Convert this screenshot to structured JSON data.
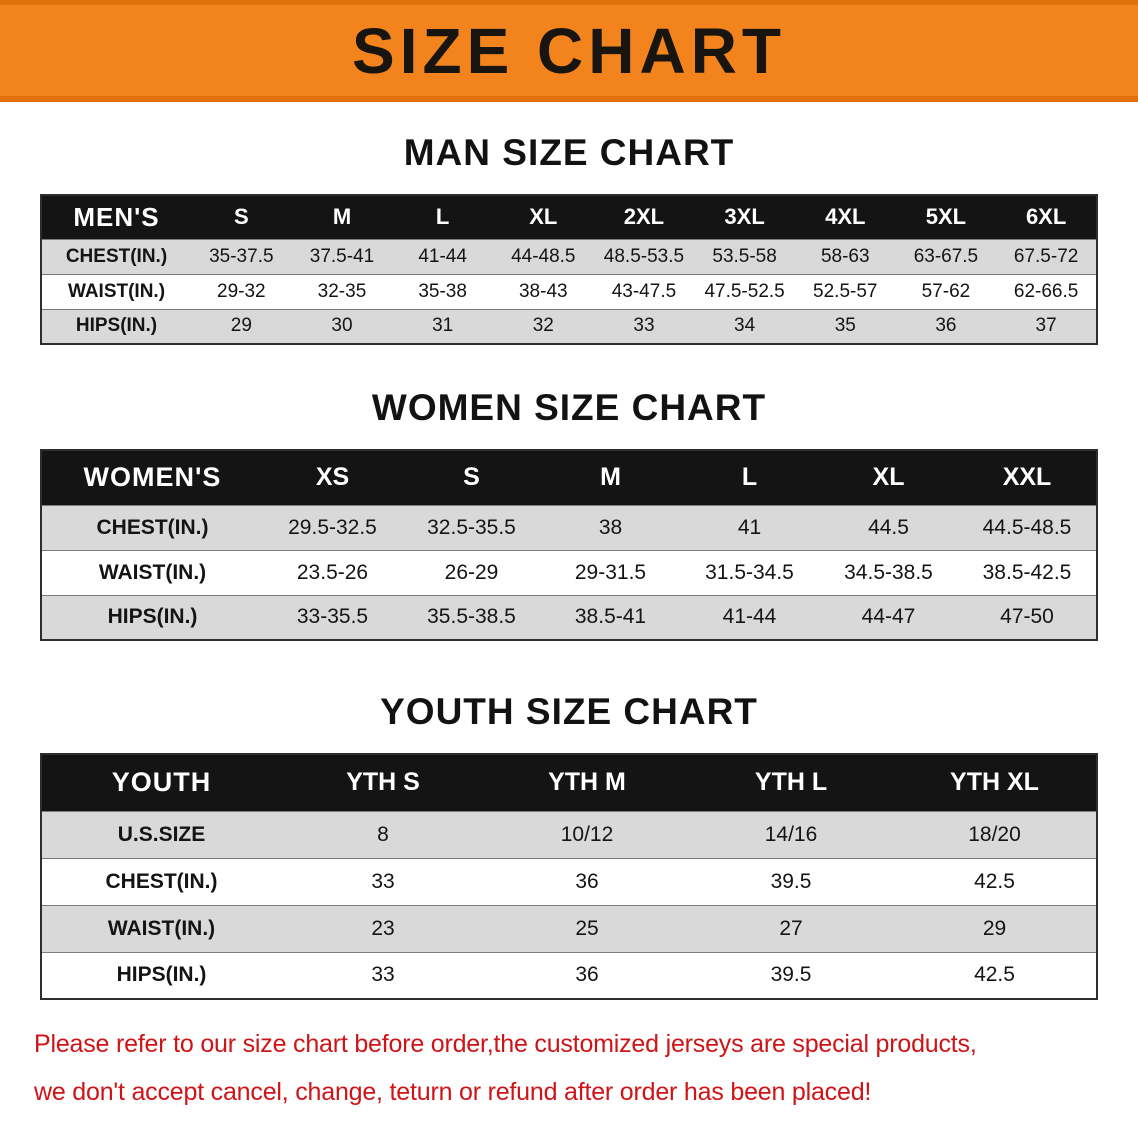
{
  "banner": {
    "title": "SIZE CHART"
  },
  "colors": {
    "banner_orange": "#f2831d",
    "table_header_black": "#141414",
    "row_shaded_gray": "#d9d9d9",
    "note_red": "#cf1316"
  },
  "sections": [
    {
      "heading": "MAN SIZE CHART",
      "table": {
        "header_label": "MEN'S",
        "columns": [
          "S",
          "M",
          "L",
          "XL",
          "2XL",
          "3XL",
          "4XL",
          "5XL",
          "6XL"
        ],
        "rows": [
          {
            "label": "CHEST(IN.)",
            "values": [
              "35-37.5",
              "37.5-41",
              "41-44",
              "44-48.5",
              "48.5-53.5",
              "53.5-58",
              "58-63",
              "63-67.5",
              "67.5-72"
            ]
          },
          {
            "label": "WAIST(IN.)",
            "values": [
              "29-32",
              "32-35",
              "35-38",
              "38-43",
              "43-47.5",
              "47.5-52.5",
              "52.5-57",
              "57-62",
              "62-66.5"
            ]
          },
          {
            "label": "HIPS(IN.)",
            "values": [
              "29",
              "30",
              "31",
              "32",
              "33",
              "34",
              "35",
              "36",
              "37"
            ]
          }
        ]
      }
    },
    {
      "heading": "WOMEN SIZE CHART",
      "table": {
        "header_label": "WOMEN'S",
        "columns": [
          "XS",
          "S",
          "M",
          "L",
          "XL",
          "XXL"
        ],
        "rows": [
          {
            "label": "CHEST(IN.)",
            "values": [
              "29.5-32.5",
              "32.5-35.5",
              "38",
              "41",
              "44.5",
              "44.5-48.5"
            ]
          },
          {
            "label": "WAIST(IN.)",
            "values": [
              "23.5-26",
              "26-29",
              "29-31.5",
              "31.5-34.5",
              "34.5-38.5",
              "38.5-42.5"
            ]
          },
          {
            "label": "HIPS(IN.)",
            "values": [
              "33-35.5",
              "35.5-38.5",
              "38.5-41",
              "41-44",
              "44-47",
              "47-50"
            ]
          }
        ]
      }
    },
    {
      "heading": "YOUTH SIZE CHART",
      "table": {
        "header_label": "YOUTH",
        "columns": [
          "YTH S",
          "YTH M",
          "YTH L",
          "YTH XL"
        ],
        "rows": [
          {
            "label": "U.S.SIZE",
            "values": [
              "8",
              "10/12",
              "14/16",
              "18/20"
            ]
          },
          {
            "label": "CHEST(IN.)",
            "values": [
              "33",
              "36",
              "39.5",
              "42.5"
            ]
          },
          {
            "label": "WAIST(IN.)",
            "values": [
              "23",
              "25",
              "27",
              "29"
            ]
          },
          {
            "label": "HIPS(IN.)",
            "values": [
              "33",
              "36",
              "39.5",
              "42.5"
            ]
          }
        ]
      }
    }
  ],
  "footer_note": {
    "line1": "Please refer to our size chart before order,the customized jerseys are special products,",
    "line2": "we don't accept cancel, change, teturn or refund after order has been placed!"
  }
}
